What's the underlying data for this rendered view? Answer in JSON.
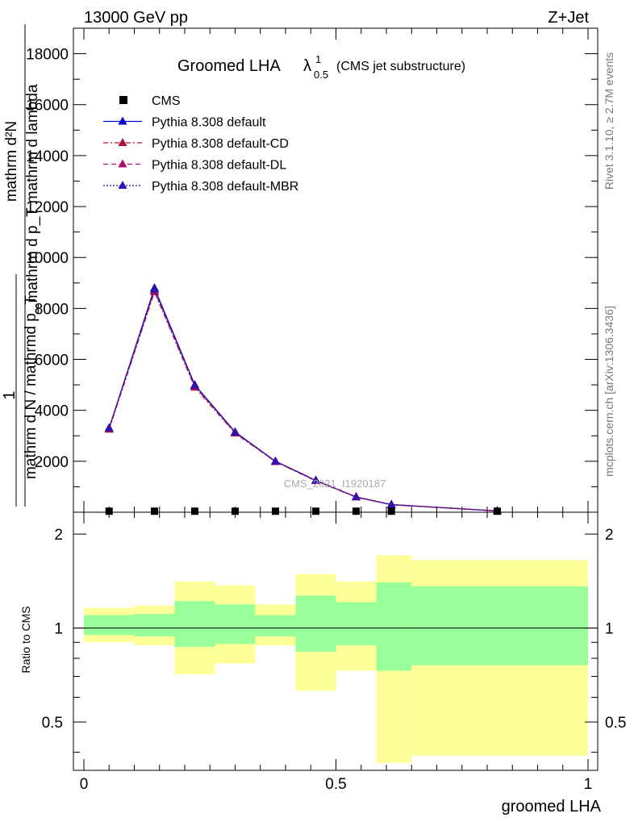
{
  "header": {
    "energy_label": "13000 GeV pp",
    "process_label": "Z+Jet"
  },
  "plot": {
    "title_main": "Groomed LHA",
    "title_lambda": "λ",
    "title_sup": "1",
    "title_sub": "0.5",
    "title_note": "(CMS jet substructure)",
    "ylabel_top_numer": "mathrm d²N",
    "ylabel_top_denom": "mathrm d p_T mathrm d lambda",
    "ylabel_one": "1",
    "ylabel_denom": "mathrm d N / mathrmd p_T",
    "watermark": "CMS_2021_I1920187",
    "side_label_top": "Rivet 3.1.10, ≥ 2.7M events",
    "side_label_bottom": "mcplots.cern.ch [arXiv:1306.3436]",
    "ratio_ylabel": "Ratio to CMS",
    "xlabel": "groomed LHA"
  },
  "legend": {
    "items": [
      {
        "label": "CMS",
        "color": "#000000",
        "style": "square"
      },
      {
        "label": "Pythia 8.308 default",
        "color": "#0000cc",
        "style": "solid"
      },
      {
        "label": "Pythia 8.308 default-CD",
        "color": "#aa1133",
        "style": "dashdot"
      },
      {
        "label": "Pythia 8.308 default-DL",
        "color": "#aa1166",
        "style": "dashed"
      },
      {
        "label": "Pythia 8.308 default-MBR",
        "color": "#3311aa",
        "style": "dotted"
      }
    ]
  },
  "chart_data": {
    "type": "line",
    "xlim": [
      0,
      1
    ],
    "ylim": [
      0,
      19000
    ],
    "x_ticks": [
      "0",
      "0.5",
      "1"
    ],
    "y_ticks": [
      "2000",
      "4000",
      "6000",
      "8000",
      "10000",
      "12000",
      "14000",
      "16000",
      "18000"
    ],
    "ratio_ylim": [
      0.35,
      2.35
    ],
    "ratio_y_ticks": [
      "0.5",
      "1",
      "2"
    ],
    "bin_edges": [
      0,
      0.1,
      0.18,
      0.26,
      0.34,
      0.42,
      0.5,
      0.58,
      0.65,
      1.0
    ],
    "x": [
      0.05,
      0.14,
      0.22,
      0.3,
      0.38,
      0.46,
      0.54,
      0.61,
      0.82
    ],
    "cms_values": [
      40,
      40,
      40,
      40,
      40,
      40,
      40,
      40,
      40
    ],
    "series": [
      {
        "name": "Pythia 8.308 default",
        "color": "#0000cc",
        "dash": "",
        "values": [
          3300,
          8800,
          5000,
          3150,
          2000,
          1250,
          600,
          300,
          50
        ]
      },
      {
        "name": "Pythia 8.308 default-CD",
        "color": "#aa1133",
        "dash": "6,3,2,3",
        "values": [
          3250,
          8650,
          4900,
          3100,
          1980,
          1230,
          590,
          290,
          50
        ]
      },
      {
        "name": "Pythia 8.308 default-DL",
        "color": "#aa1166",
        "dash": "6,4",
        "values": [
          3280,
          8700,
          4950,
          3120,
          1990,
          1240,
          595,
          295,
          50
        ]
      },
      {
        "name": "Pythia 8.308 default-MBR",
        "color": "#3311aa",
        "dash": "2,2",
        "values": [
          3300,
          8750,
          4980,
          3140,
          2000,
          1250,
          600,
          300,
          50
        ]
      }
    ],
    "ratio_bands": {
      "yellow_low": [
        0.9,
        0.88,
        0.71,
        0.77,
        0.88,
        0.63,
        0.73,
        0.37,
        0.39
      ],
      "yellow_high": [
        1.16,
        1.18,
        1.41,
        1.37,
        1.19,
        1.49,
        1.41,
        1.71,
        1.65
      ],
      "green_low": [
        0.95,
        0.94,
        0.87,
        0.89,
        0.94,
        0.84,
        0.88,
        0.73,
        0.76
      ],
      "green_high": [
        1.1,
        1.11,
        1.22,
        1.19,
        1.1,
        1.27,
        1.21,
        1.4,
        1.36
      ]
    },
    "band_colors": {
      "yellow": "#ffff99",
      "green": "#99ff99"
    }
  }
}
